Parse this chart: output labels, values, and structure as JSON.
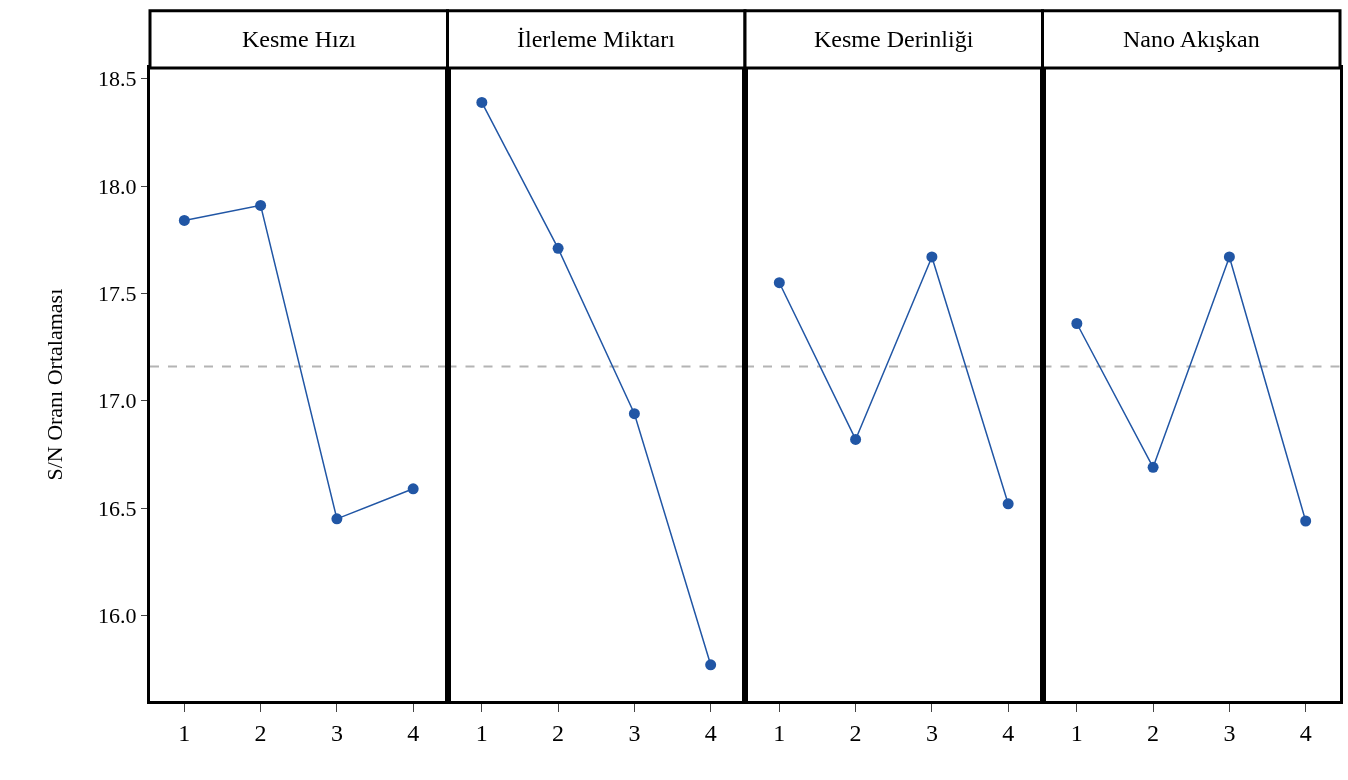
{
  "chart_data": [
    {
      "type": "line",
      "title": "Kesme Hızı",
      "ylabel": "S/N Oranı Ortalaması",
      "categories": [
        "1",
        "2",
        "3",
        "4"
      ],
      "series": [
        {
          "color": "#2156a5",
          "values": [
            17.84,
            17.91,
            16.45,
            16.59
          ]
        }
      ],
      "ylim": [
        15.6,
        18.55
      ],
      "yticks": [
        {
          "value": 16,
          "label": "16.0"
        },
        16.5,
        {
          "value": 17,
          "label": "17.0"
        },
        17.5,
        {
          "value": 18,
          "label": "18.0"
        },
        18.5
      ],
      "marker": "circle",
      "line_style": "solid",
      "grid": false,
      "ref_lines": [
        {
          "axis": "y",
          "value": 17.16,
          "color": "#b4b4b4",
          "line_style": "dashed"
        }
      ]
    },
    {
      "type": "line",
      "title": "İlerleme Miktarı",
      "categories": [
        "1",
        "2",
        "3",
        "4"
      ],
      "series": [
        {
          "color": "#2156a5",
          "values": [
            18.39,
            17.71,
            16.94,
            15.77
          ]
        }
      ],
      "ylim": [
        15.6,
        18.55
      ],
      "tick_labels": "x",
      "marker": "circle",
      "line_style": "solid",
      "grid": false,
      "ref_lines": [
        {
          "axis": "y",
          "value": 17.16,
          "color": "#b4b4b4",
          "line_style": "dashed"
        }
      ]
    },
    {
      "type": "line",
      "title": "Kesme Derinliği",
      "categories": [
        "1",
        "2",
        "3",
        "4"
      ],
      "series": [
        {
          "color": "#2156a5",
          "values": [
            17.55,
            16.82,
            17.67,
            16.52
          ]
        }
      ],
      "ylim": [
        15.6,
        18.55
      ],
      "tick_labels": "x",
      "marker": "circle",
      "line_style": "solid",
      "grid": false,
      "ref_lines": [
        {
          "axis": "y",
          "value": 17.16,
          "color": "#b4b4b4",
          "line_style": "dashed"
        }
      ]
    },
    {
      "type": "line",
      "title": "Nano Akışkan",
      "categories": [
        "1",
        "2",
        "3",
        "4"
      ],
      "series": [
        {
          "color": "#2156a5",
          "values": [
            17.36,
            16.69,
            17.67,
            16.44
          ]
        }
      ],
      "ylim": [
        15.6,
        18.55
      ],
      "tick_labels": "x",
      "marker": "circle",
      "line_style": "solid",
      "grid": false,
      "ref_lines": [
        {
          "axis": "y",
          "value": 17.16,
          "color": "#b4b4b4",
          "line_style": "dashed"
        }
      ]
    }
  ]
}
